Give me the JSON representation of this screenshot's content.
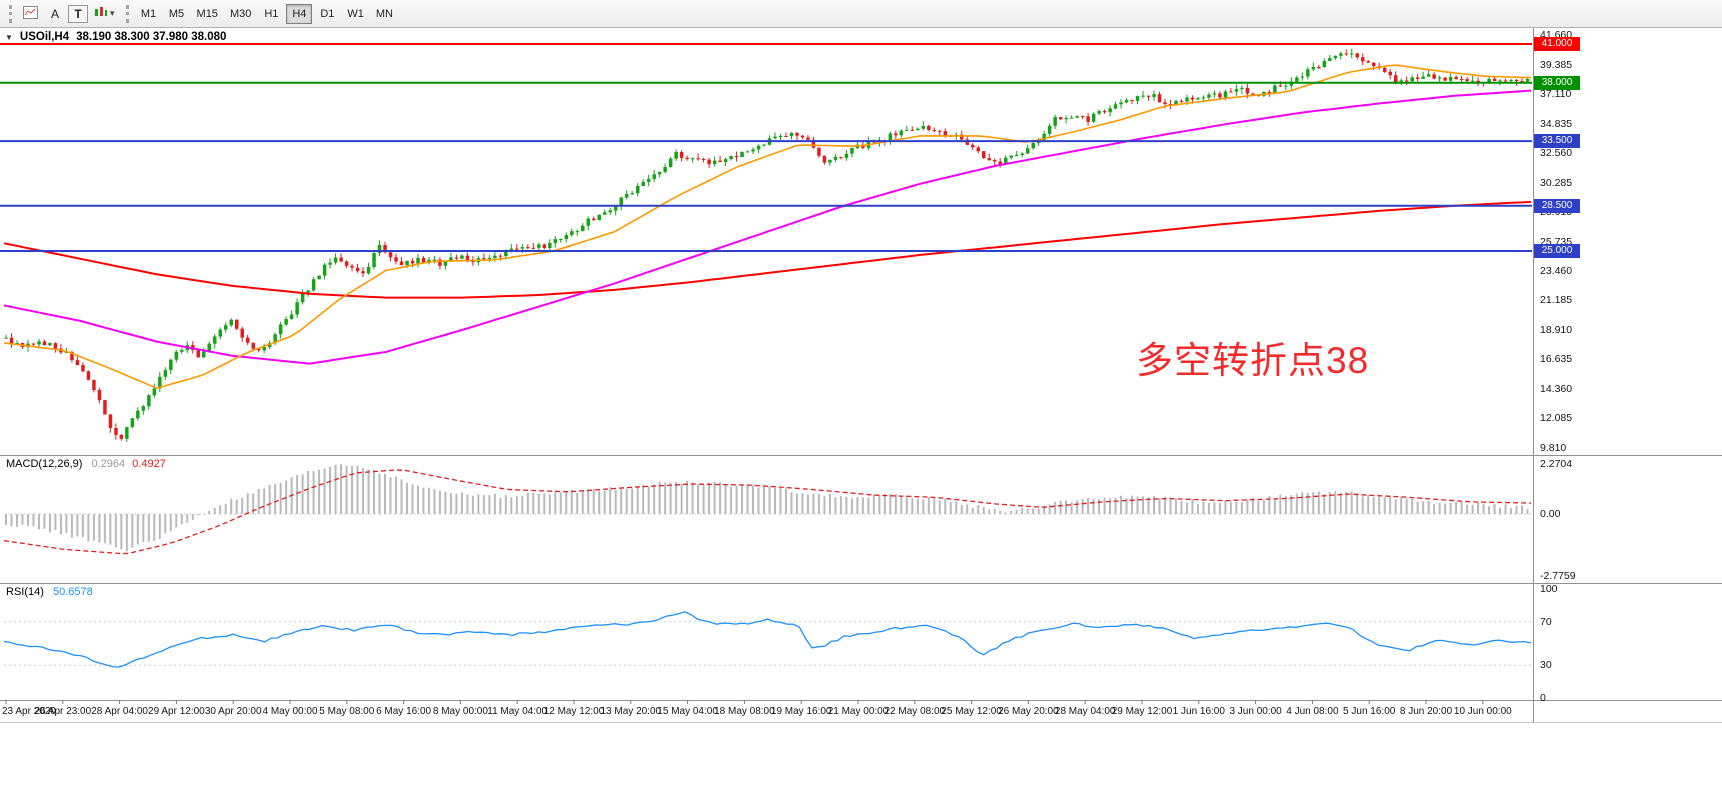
{
  "toolbar": {
    "button_a": "A",
    "button_t": "T",
    "timeframes": [
      "M1",
      "M5",
      "M15",
      "M30",
      "H1",
      "H4",
      "D1",
      "W1",
      "MN"
    ],
    "active_timeframe": "H4"
  },
  "chart": {
    "symbol_title": "USOil,H4",
    "ohlc_text": "38.190 38.300 37.980 38.080",
    "annotation": {
      "text": "多空转折点38",
      "color": "#f42b2b"
    },
    "levels": [
      {
        "label": "41.000",
        "price": 41.0,
        "color": "#fe0000"
      },
      {
        "label": "38.000",
        "price": 38.0,
        "color": "#009000"
      },
      {
        "label": "33.500",
        "price": 33.5,
        "color": "#2e3fc8"
      },
      {
        "label": "28.500",
        "price": 28.5,
        "color": "#2e3fc8"
      },
      {
        "label": "25.000",
        "price": 25.0,
        "color": "#2e3fc8"
      }
    ],
    "price_ticks": [
      "41.660",
      "39.385",
      "37.110",
      "34.835",
      "32.560",
      "30.285",
      "28.010",
      "25.735",
      "23.460",
      "21.185",
      "18.910",
      "16.635",
      "14.360",
      "12.085",
      "9.810"
    ]
  },
  "macd_panel": {
    "name": "MACD(12,26,9)",
    "value_main": "0.2964",
    "value_signal": "0.4927",
    "ticks": [
      "2.2704",
      "0.00",
      "-2.7759"
    ]
  },
  "rsi_panel": {
    "name": "RSI(14)",
    "value": "50.6578",
    "ticks": [
      "100",
      "70",
      "30",
      "0"
    ]
  },
  "time_axis": {
    "labels": [
      "23 Apr 2020",
      "26 Apr 23:00",
      "28 Apr 04:00",
      "29 Apr 12:00",
      "30 Apr 20:00",
      "4 May 00:00",
      "5 May 08:00",
      "6 May 16:00",
      "8 May 00:00",
      "11 May 04:00",
      "12 May 12:00",
      "13 May 20:00",
      "15 May 04:00",
      "18 May 08:00",
      "19 May 16:00",
      "21 May 00:00",
      "22 May 08:00",
      "25 May 12:00",
      "26 May 20:00",
      "28 May 04:00",
      "29 May 12:00",
      "1 Jun 16:00",
      "3 Jun 00:00",
      "4 Jun 08:00",
      "5 Jun 16:00",
      "8 Jun 20:00",
      "10 Jun 00:00"
    ]
  },
  "chart_data": {
    "type": "candlestick",
    "symbol": "USOil",
    "timeframe": "H4",
    "ohlc_current": {
      "open": 38.19,
      "high": 38.3,
      "low": 37.98,
      "close": 38.08
    },
    "price_axis_range": [
      9.3,
      42.2
    ],
    "bars_estimate": 278,
    "horizontal_levels": [
      41.0,
      38.0,
      33.5,
      28.5,
      25.0
    ],
    "colors": {
      "up": "#17a317",
      "down": "#e11e1e",
      "ma_fast": "#ff9900",
      "ma_mid": "#f400f4",
      "ma_slow": "#ff0000",
      "macd_hist": "#b9b9b9",
      "macd_signal": "#e02020",
      "rsi": "#1e90ff"
    },
    "close_trend_keypoints": [
      [
        0,
        18.3
      ],
      [
        0.012,
        17.6
      ],
      [
        0.025,
        17.9
      ],
      [
        0.04,
        17.1
      ],
      [
        0.05,
        16.0
      ],
      [
        0.06,
        13.8
      ],
      [
        0.068,
        11.6
      ],
      [
        0.075,
        10.4
      ],
      [
        0.082,
        11.9
      ],
      [
        0.09,
        13.2
      ],
      [
        0.1,
        15.0
      ],
      [
        0.11,
        16.9
      ],
      [
        0.118,
        17.6
      ],
      [
        0.128,
        16.9
      ],
      [
        0.138,
        18.6
      ],
      [
        0.148,
        19.6
      ],
      [
        0.156,
        18.4
      ],
      [
        0.165,
        17.3
      ],
      [
        0.175,
        18.2
      ],
      [
        0.185,
        19.8
      ],
      [
        0.195,
        21.6
      ],
      [
        0.205,
        23.2
      ],
      [
        0.215,
        24.6
      ],
      [
        0.225,
        23.9
      ],
      [
        0.235,
        23.3
      ],
      [
        0.245,
        25.4
      ],
      [
        0.252,
        24.4
      ],
      [
        0.26,
        23.9
      ],
      [
        0.27,
        24.3
      ],
      [
        0.285,
        24.1
      ],
      [
        0.3,
        24.5
      ],
      [
        0.315,
        24.2
      ],
      [
        0.33,
        24.9
      ],
      [
        0.345,
        25.2
      ],
      [
        0.36,
        25.6
      ],
      [
        0.375,
        26.7
      ],
      [
        0.39,
        27.8
      ],
      [
        0.4,
        28.6
      ],
      [
        0.415,
        29.8
      ],
      [
        0.43,
        31.2
      ],
      [
        0.44,
        32.6
      ],
      [
        0.45,
        32.0
      ],
      [
        0.462,
        31.8
      ],
      [
        0.475,
        32.3
      ],
      [
        0.488,
        32.5
      ],
      [
        0.5,
        33.6
      ],
      [
        0.51,
        34.1
      ],
      [
        0.52,
        33.9
      ],
      [
        0.53,
        33.2
      ],
      [
        0.538,
        31.6
      ],
      [
        0.548,
        32.3
      ],
      [
        0.56,
        33.0
      ],
      [
        0.575,
        33.6
      ],
      [
        0.59,
        34.2
      ],
      [
        0.6,
        34.6
      ],
      [
        0.61,
        34.2
      ],
      [
        0.625,
        33.9
      ],
      [
        0.64,
        32.4
      ],
      [
        0.652,
        31.8
      ],
      [
        0.665,
        32.6
      ],
      [
        0.678,
        33.4
      ],
      [
        0.688,
        35.3
      ],
      [
        0.7,
        35.4
      ],
      [
        0.712,
        35.2
      ],
      [
        0.725,
        36.2
      ],
      [
        0.74,
        36.8
      ],
      [
        0.752,
        37.2
      ],
      [
        0.762,
        36.4
      ],
      [
        0.775,
        36.6
      ],
      [
        0.79,
        36.9
      ],
      [
        0.8,
        37.1
      ],
      [
        0.812,
        37.4
      ],
      [
        0.825,
        37.1
      ],
      [
        0.838,
        37.8
      ],
      [
        0.85,
        38.4
      ],
      [
        0.862,
        39.4
      ],
      [
        0.875,
        40.2
      ],
      [
        0.885,
        40.1
      ],
      [
        0.895,
        39.6
      ],
      [
        0.905,
        38.9
      ],
      [
        0.915,
        38.2
      ],
      [
        0.925,
        38.4
      ],
      [
        0.935,
        38.6
      ],
      [
        0.945,
        38.2
      ],
      [
        0.955,
        38.5
      ],
      [
        0.965,
        38.3
      ],
      [
        0.975,
        38.1
      ],
      [
        1,
        38.08
      ]
    ],
    "ma_fast_orange_keypoints": [
      [
        0,
        17.9
      ],
      [
        0.04,
        17.3
      ],
      [
        0.07,
        15.9
      ],
      [
        0.1,
        14.4
      ],
      [
        0.13,
        15.4
      ],
      [
        0.16,
        17.2
      ],
      [
        0.19,
        18.5
      ],
      [
        0.22,
        21.3
      ],
      [
        0.25,
        23.5
      ],
      [
        0.28,
        24.2
      ],
      [
        0.32,
        24.3
      ],
      [
        0.36,
        25.0
      ],
      [
        0.4,
        26.5
      ],
      [
        0.44,
        29.2
      ],
      [
        0.48,
        31.5
      ],
      [
        0.52,
        33.2
      ],
      [
        0.56,
        33.1
      ],
      [
        0.6,
        33.9
      ],
      [
        0.64,
        33.9
      ],
      [
        0.67,
        33.4
      ],
      [
        0.7,
        34.2
      ],
      [
        0.73,
        35.1
      ],
      [
        0.76,
        36.2
      ],
      [
        0.8,
        36.8
      ],
      [
        0.84,
        37.3
      ],
      [
        0.88,
        38.8
      ],
      [
        0.91,
        39.4
      ],
      [
        0.94,
        38.9
      ],
      [
        0.97,
        38.5
      ],
      [
        1,
        38.4
      ]
    ],
    "ma_mid_magenta_keypoints": [
      [
        0,
        20.8
      ],
      [
        0.05,
        19.6
      ],
      [
        0.1,
        18.0
      ],
      [
        0.15,
        16.9
      ],
      [
        0.2,
        16.3
      ],
      [
        0.25,
        17.2
      ],
      [
        0.3,
        18.9
      ],
      [
        0.35,
        20.7
      ],
      [
        0.4,
        22.5
      ],
      [
        0.45,
        24.5
      ],
      [
        0.5,
        26.5
      ],
      [
        0.55,
        28.5
      ],
      [
        0.6,
        30.2
      ],
      [
        0.65,
        31.6
      ],
      [
        0.7,
        32.7
      ],
      [
        0.75,
        33.8
      ],
      [
        0.8,
        34.8
      ],
      [
        0.85,
        35.7
      ],
      [
        0.9,
        36.4
      ],
      [
        0.95,
        37.0
      ],
      [
        1,
        37.4
      ]
    ],
    "ma_slow_red_keypoints": [
      [
        0,
        25.6
      ],
      [
        0.05,
        24.4
      ],
      [
        0.1,
        23.2
      ],
      [
        0.15,
        22.3
      ],
      [
        0.2,
        21.7
      ],
      [
        0.25,
        21.4
      ],
      [
        0.3,
        21.4
      ],
      [
        0.35,
        21.6
      ],
      [
        0.4,
        22.0
      ],
      [
        0.45,
        22.6
      ],
      [
        0.5,
        23.3
      ],
      [
        0.55,
        24.0
      ],
      [
        0.6,
        24.7
      ],
      [
        0.65,
        25.3
      ],
      [
        0.7,
        25.9
      ],
      [
        0.75,
        26.5
      ],
      [
        0.8,
        27.1
      ],
      [
        0.85,
        27.6
      ],
      [
        0.9,
        28.1
      ],
      [
        0.95,
        28.5
      ],
      [
        1,
        28.8
      ]
    ],
    "macd": {
      "range": [
        -2.7759,
        2.2704
      ],
      "current_hist": 0.2964,
      "current_signal": 0.4927,
      "hist_keypoints": [
        [
          0,
          -0.45
        ],
        [
          0.03,
          -0.75
        ],
        [
          0.06,
          -1.3
        ],
        [
          0.08,
          -1.6
        ],
        [
          0.1,
          -1.1
        ],
        [
          0.12,
          -0.35
        ],
        [
          0.14,
          0.4
        ],
        [
          0.16,
          0.9
        ],
        [
          0.18,
          1.4
        ],
        [
          0.2,
          1.9
        ],
        [
          0.22,
          2.27
        ],
        [
          0.24,
          2.05
        ],
        [
          0.26,
          1.5
        ],
        [
          0.28,
          1.1
        ],
        [
          0.3,
          0.9
        ],
        [
          0.33,
          0.8
        ],
        [
          0.36,
          0.95
        ],
        [
          0.4,
          1.15
        ],
        [
          0.44,
          1.45
        ],
        [
          0.47,
          1.35
        ],
        [
          0.5,
          1.2
        ],
        [
          0.53,
          0.9
        ],
        [
          0.56,
          0.75
        ],
        [
          0.58,
          0.85
        ],
        [
          0.61,
          0.7
        ],
        [
          0.64,
          0.3
        ],
        [
          0.66,
          0.1
        ],
        [
          0.68,
          0.35
        ],
        [
          0.7,
          0.6
        ],
        [
          0.73,
          0.8
        ],
        [
          0.76,
          0.7
        ],
        [
          0.79,
          0.5
        ],
        [
          0.82,
          0.65
        ],
        [
          0.85,
          0.9
        ],
        [
          0.88,
          1.0
        ],
        [
          0.9,
          0.8
        ],
        [
          0.93,
          0.55
        ],
        [
          0.96,
          0.45
        ],
        [
          1,
          0.3
        ]
      ],
      "signal_keypoints": [
        [
          0,
          -1.2
        ],
        [
          0.04,
          -1.6
        ],
        [
          0.08,
          -1.8
        ],
        [
          0.11,
          -1.3
        ],
        [
          0.14,
          -0.55
        ],
        [
          0.17,
          0.35
        ],
        [
          0.2,
          1.15
        ],
        [
          0.23,
          1.85
        ],
        [
          0.26,
          2.0
        ],
        [
          0.29,
          1.6
        ],
        [
          0.33,
          1.1
        ],
        [
          0.37,
          1.0
        ],
        [
          0.41,
          1.2
        ],
        [
          0.45,
          1.35
        ],
        [
          0.49,
          1.3
        ],
        [
          0.53,
          1.1
        ],
        [
          0.57,
          0.85
        ],
        [
          0.61,
          0.75
        ],
        [
          0.65,
          0.45
        ],
        [
          0.68,
          0.3
        ],
        [
          0.72,
          0.55
        ],
        [
          0.76,
          0.7
        ],
        [
          0.8,
          0.6
        ],
        [
          0.84,
          0.7
        ],
        [
          0.88,
          0.9
        ],
        [
          0.92,
          0.75
        ],
        [
          0.96,
          0.55
        ],
        [
          1,
          0.49
        ]
      ]
    },
    "rsi": {
      "range": [
        0,
        100
      ],
      "levels": [
        30,
        70
      ],
      "current": 50.6578,
      "keypoints": [
        [
          0,
          52
        ],
        [
          0.02,
          47
        ],
        [
          0.04,
          42
        ],
        [
          0.06,
          34
        ],
        [
          0.075,
          28
        ],
        [
          0.09,
          36
        ],
        [
          0.11,
          47
        ],
        [
          0.13,
          55
        ],
        [
          0.15,
          58
        ],
        [
          0.17,
          52
        ],
        [
          0.19,
          60
        ],
        [
          0.21,
          66
        ],
        [
          0.23,
          62
        ],
        [
          0.25,
          67
        ],
        [
          0.27,
          60
        ],
        [
          0.29,
          58
        ],
        [
          0.31,
          61
        ],
        [
          0.33,
          58
        ],
        [
          0.35,
          60
        ],
        [
          0.37,
          64
        ],
        [
          0.39,
          67
        ],
        [
          0.41,
          68
        ],
        [
          0.43,
          72
        ],
        [
          0.445,
          80
        ],
        [
          0.46,
          69
        ],
        [
          0.48,
          67
        ],
        [
          0.5,
          72
        ],
        [
          0.52,
          66
        ],
        [
          0.53,
          44
        ],
        [
          0.55,
          56
        ],
        [
          0.57,
          61
        ],
        [
          0.59,
          65
        ],
        [
          0.61,
          66
        ],
        [
          0.63,
          52
        ],
        [
          0.64,
          38
        ],
        [
          0.66,
          54
        ],
        [
          0.68,
          63
        ],
        [
          0.7,
          68
        ],
        [
          0.72,
          65
        ],
        [
          0.74,
          68
        ],
        [
          0.76,
          63
        ],
        [
          0.78,
          55
        ],
        [
          0.8,
          59
        ],
        [
          0.82,
          62
        ],
        [
          0.84,
          64
        ],
        [
          0.86,
          69
        ],
        [
          0.88,
          65
        ],
        [
          0.9,
          48
        ],
        [
          0.92,
          44
        ],
        [
          0.94,
          54
        ],
        [
          0.96,
          48
        ],
        [
          0.98,
          53
        ],
        [
          1,
          50.66
        ]
      ]
    }
  }
}
